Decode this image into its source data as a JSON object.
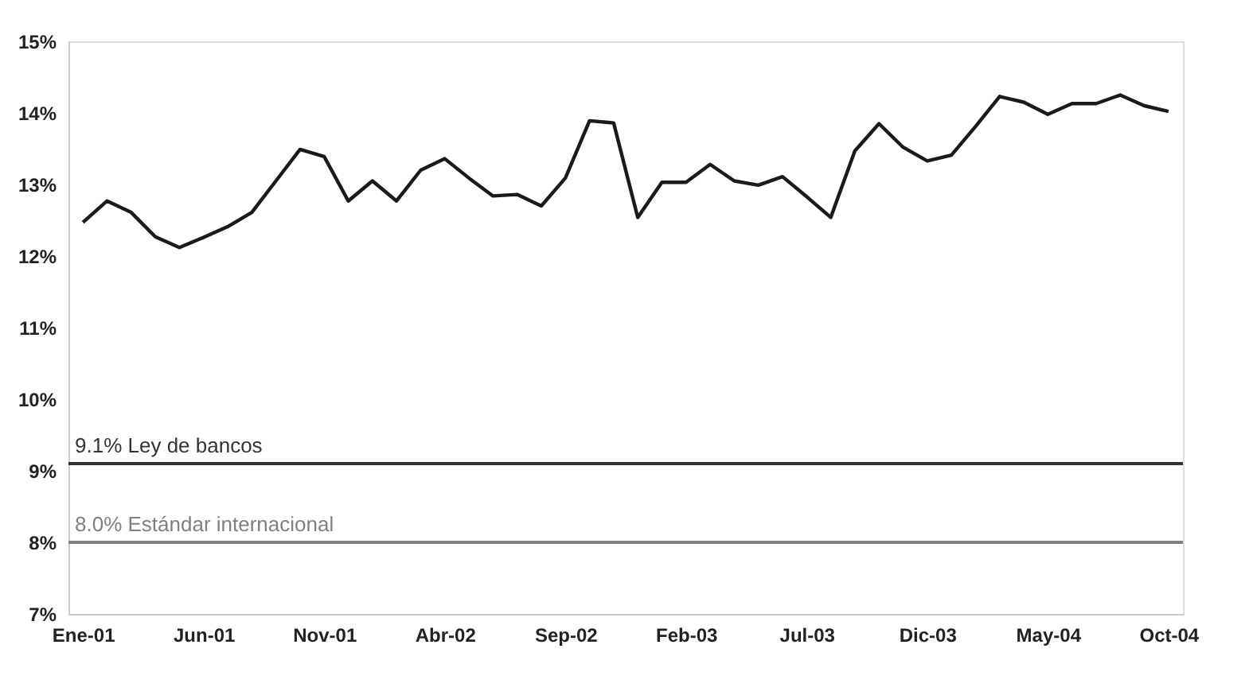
{
  "chart_data": {
    "type": "line",
    "categories": [
      "Ene-01",
      null,
      null,
      null,
      null,
      "Jun-01",
      null,
      null,
      null,
      null,
      "Nov-01",
      null,
      null,
      null,
      null,
      "Abr-02",
      null,
      null,
      null,
      null,
      "Sep-02",
      null,
      null,
      null,
      null,
      "Feb-03",
      null,
      null,
      null,
      null,
      "Jul-03",
      null,
      null,
      null,
      null,
      "Dic-03",
      null,
      null,
      null,
      null,
      "May-04",
      null,
      null,
      null,
      null,
      "Oct-04"
    ],
    "series": [
      {
        "color": "#1a1a1a",
        "values": [
          12.47,
          12.77,
          12.61,
          12.27,
          12.12,
          12.26,
          12.41,
          12.61,
          13.05,
          13.49,
          13.39,
          12.77,
          13.05,
          12.77,
          13.2,
          13.36,
          13.09,
          12.84,
          12.86,
          12.7,
          13.09,
          13.89,
          13.86,
          12.54,
          13.03,
          13.03,
          13.28,
          13.05,
          12.99,
          13.11,
          12.83,
          12.54,
          13.47,
          13.85,
          13.52,
          13.33,
          13.41,
          13.81,
          14.23,
          14.15,
          13.98,
          14.13,
          14.13,
          14.25,
          14.1,
          14.02
        ]
      }
    ],
    "ylim": [
      7,
      15
    ],
    "yticks": [
      {
        "value": 7,
        "label": "7%"
      },
      {
        "value": 8,
        "label": "8%"
      },
      {
        "value": 9,
        "label": "9%"
      },
      {
        "value": 10,
        "label": "10%"
      },
      {
        "value": 11,
        "label": "11%"
      },
      {
        "value": 12,
        "label": "12%"
      },
      {
        "value": 13,
        "label": "13%"
      },
      {
        "value": 14,
        "label": "14%"
      },
      {
        "value": 15,
        "label": "15%"
      }
    ],
    "ref_lines": [
      {
        "axis": "y",
        "value": 9.1,
        "label": "9.1% Ley de bancos",
        "color": "#333333"
      },
      {
        "axis": "y",
        "value": 8.0,
        "label": "8.0% Estándar internacional",
        "color": "#808080"
      }
    ],
    "grid": false,
    "marker": "none",
    "line_style": "solid"
  }
}
